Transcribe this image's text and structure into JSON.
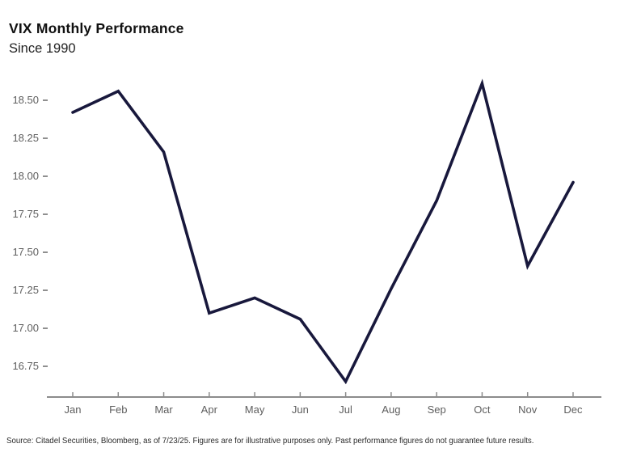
{
  "header": {
    "title": "VIX Monthly Performance",
    "subtitle": "Since 1990"
  },
  "chart_data": {
    "type": "line",
    "title": "VIX Monthly Performance",
    "subtitle": "Since 1990",
    "categories": [
      "Jan",
      "Feb",
      "Mar",
      "Apr",
      "May",
      "Jun",
      "Jul",
      "Aug",
      "Sep",
      "Oct",
      "Nov",
      "Dec"
    ],
    "values": [
      18.42,
      18.56,
      18.16,
      17.1,
      17.2,
      17.06,
      16.65,
      17.26,
      17.84,
      18.61,
      17.41,
      17.96
    ],
    "xlabel": "",
    "ylabel": "",
    "ytick_labels": [
      "18.50",
      "18.25",
      "18.00",
      "17.75",
      "17.50",
      "17.25",
      "17.00",
      "16.75"
    ],
    "ylim": [
      16.55,
      18.72
    ],
    "grid": false,
    "legend": "none",
    "line_color": "#18183c",
    "axis_color": "#8c8c8c",
    "tick_label_color": "#5d5d5d"
  },
  "footer": {
    "source": "Source: Citadel Securities, Bloomberg, as of 7/23/25. Figures are for illustrative purposes only. Past performance figures do not guarantee future results."
  }
}
